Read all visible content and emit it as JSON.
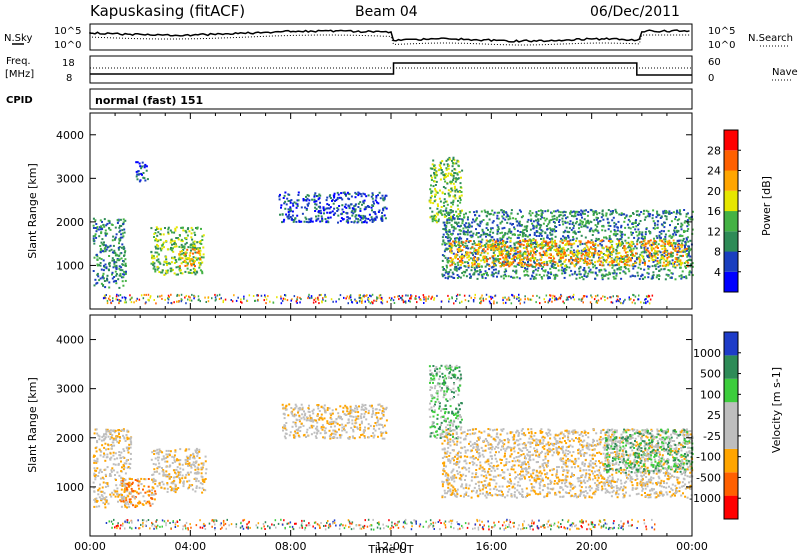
{
  "header": {
    "station": "Kapuskasing (fitACF)",
    "beam": "Beam 04",
    "date": "06/Dec/2011"
  },
  "noise_panel": {
    "left_label": "N.Sky",
    "right_label": "N.Search",
    "left_ticks": [
      "10^5",
      "10^0"
    ],
    "right_ticks": [
      "10^5",
      "10^0"
    ]
  },
  "freq_panel": {
    "left_label_1": "Freq.",
    "left_label_2": "[MHz]",
    "right_label": "Nave",
    "left_ticks": [
      "18",
      "8"
    ],
    "right_ticks": [
      "60",
      "0"
    ]
  },
  "cpid_panel": {
    "left_label": "CPID",
    "text": "normal (fast) 151"
  },
  "colors": {
    "power_scale": [
      "#0000ff",
      "#1a3fbf",
      "#2e8b57",
      "#44b244",
      "#e6e600",
      "#ffa500",
      "#ff6000",
      "#ff0000"
    ],
    "velocity_scale": [
      "#1e3cc8",
      "#2e8b57",
      "#3ccd3c",
      "#bebebe",
      "#bebebe",
      "#ffa500",
      "#ff6000",
      "#ff0000"
    ]
  },
  "chart_data": [
    {
      "type": "heatmap",
      "name": "power",
      "ylabel": "Slant Range [km]",
      "yticks": [
        1000,
        2000,
        3000,
        4000
      ],
      "ylim": [
        0,
        4500
      ],
      "xlim": [
        0,
        24
      ],
      "colorbar_label": "Power [dB]",
      "colorbar_ticks": [
        "4",
        "8",
        "12",
        "16",
        "20",
        "24",
        "28"
      ],
      "regions": [
        {
          "t0": 0.1,
          "t1": 1.4,
          "r0": 500,
          "r1": 2100,
          "level": 2
        },
        {
          "t0": 1.8,
          "t1": 2.3,
          "r0": 2900,
          "r1": 3400,
          "level": 1
        },
        {
          "t0": 2.4,
          "t1": 4.5,
          "r0": 800,
          "r1": 1900,
          "level": 3
        },
        {
          "t0": 3.5,
          "t1": 4.4,
          "r0": 1000,
          "r1": 1400,
          "level": 5
        },
        {
          "t0": 7.5,
          "t1": 11.8,
          "r0": 2000,
          "r1": 2700,
          "level": 1
        },
        {
          "t0": 13.5,
          "t1": 14.8,
          "r0": 2000,
          "r1": 3500,
          "level": 3
        },
        {
          "t0": 14.0,
          "t1": 24.0,
          "r0": 700,
          "r1": 2300,
          "level": 2
        },
        {
          "t0": 14.3,
          "t1": 23.8,
          "r0": 1000,
          "r1": 1600,
          "level": 5
        }
      ]
    },
    {
      "type": "heatmap",
      "name": "velocity",
      "ylabel": "Slant Range [km]",
      "yticks": [
        1000,
        2000,
        3000,
        4000
      ],
      "ylim": [
        0,
        4500
      ],
      "xlim": [
        0,
        24
      ],
      "xlabel": "Time UT",
      "xticks": [
        "00:00",
        "04:00",
        "08:00",
        "12:00",
        "16:00",
        "20:00",
        "00:00"
      ],
      "colorbar_label": "Velocity [m s-1]",
      "colorbar_ticks": [
        "1000",
        "500",
        "100",
        "25",
        "-25",
        "-100",
        "-500",
        "-1000"
      ],
      "regions": [
        {
          "t0": 0.1,
          "t1": 1.6,
          "r0": 600,
          "r1": 2200,
          "level": 3
        },
        {
          "t0": 1.2,
          "t1": 2.6,
          "r0": 600,
          "r1": 1200,
          "level": 2
        },
        {
          "t0": 2.4,
          "t1": 4.6,
          "r0": 900,
          "r1": 1800,
          "level": 3
        },
        {
          "t0": 7.6,
          "t1": 11.8,
          "r0": 2000,
          "r1": 2700,
          "level": 3
        },
        {
          "t0": 13.5,
          "t1": 14.8,
          "r0": 2000,
          "r1": 3500,
          "level": 5
        },
        {
          "t0": 14.0,
          "t1": 24.0,
          "r0": 800,
          "r1": 2200,
          "level": 3
        },
        {
          "t0": 20.5,
          "t1": 24.0,
          "r0": 1300,
          "r1": 2200,
          "level": 5
        }
      ]
    }
  ]
}
